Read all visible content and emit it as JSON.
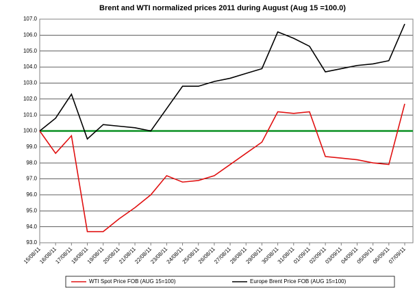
{
  "chart_data": {
    "type": "line",
    "title": "Brent and WTI normalized prices 2011 during   August  (Aug 15 =100.0)",
    "categories": [
      "15/08/11",
      "16/08/11",
      "17/08/11",
      "18/08/11",
      "19/08/11",
      "20/08/11",
      "21/08/11",
      "22/08/11",
      "23/08/11",
      "24/08/11",
      "25/08/11",
      "26/08/11",
      "27/08/11",
      "28/08/11",
      "29/08/11",
      "30/08/11",
      "31/08/11",
      "01/09/11",
      "02/09/11",
      "03/09/11",
      "04/09/11",
      "05/09/11",
      "06/09/11",
      "07/09/11"
    ],
    "series": [
      {
        "name": "WTI Spot Price FOB (AUG 15=100)",
        "color": "#e01010",
        "values": [
          100.0,
          98.6,
          99.7,
          93.7,
          93.7,
          94.5,
          95.2,
          96.0,
          97.2,
          96.8,
          96.9,
          97.2,
          97.9,
          98.6,
          99.3,
          101.2,
          101.1,
          101.2,
          98.4,
          98.3,
          98.2,
          98.0,
          97.9,
          101.7
        ]
      },
      {
        "name": "Europe Brent Price FOB (AUG 15=100)",
        "color": "#000000",
        "values": [
          100.0,
          100.8,
          102.3,
          99.5,
          100.4,
          100.3,
          100.2,
          100.0,
          101.4,
          102.8,
          102.8,
          103.1,
          103.3,
          103.6,
          103.9,
          106.2,
          105.8,
          105.3,
          103.7,
          103.9,
          104.1,
          104.2,
          104.4,
          106.7
        ]
      }
    ],
    "reference_line": {
      "value": 100,
      "color": "#2ea043"
    },
    "ylim": [
      93,
      107
    ],
    "yticks": [
      {
        "value": 93,
        "label": "93.0"
      },
      {
        "value": 94,
        "label": "94.0"
      },
      {
        "value": 95,
        "label": "95.0"
      },
      {
        "value": 96,
        "label": "96.0"
      },
      {
        "value": 97,
        "label": "97.0"
      },
      {
        "value": 98,
        "label": "98.0"
      },
      {
        "value": 99,
        "label": "99.0"
      },
      {
        "value": 100,
        "label": "100.0"
      },
      {
        "value": 101,
        "label": "101.0"
      },
      {
        "value": 102,
        "label": "102.0"
      },
      {
        "value": 103,
        "label": "103.0"
      },
      {
        "value": 104,
        "label": "104.0"
      },
      {
        "value": 105,
        "label": "105.0"
      },
      {
        "value": 106,
        "label": "106.0"
      },
      {
        "value": 107,
        "label": "107.0"
      }
    ],
    "grid": true,
    "legend": "bottom"
  }
}
